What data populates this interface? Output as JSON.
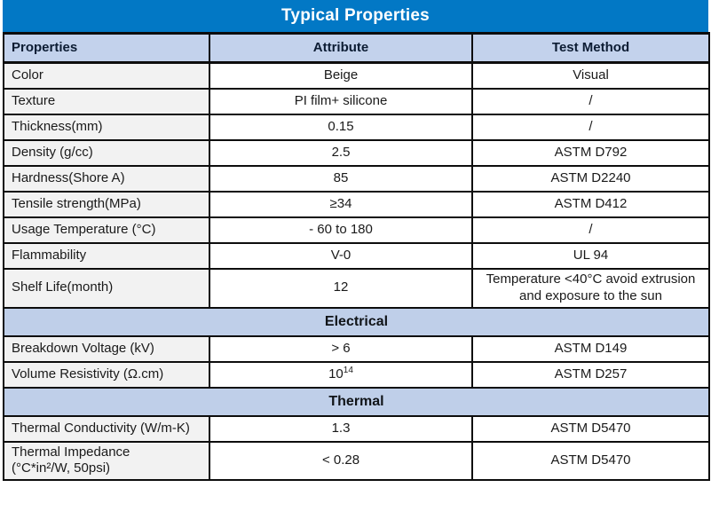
{
  "title": "Typical Properties",
  "colors": {
    "title_bar": "#0278c5",
    "header_bg": "#c3d2ec",
    "section_bg": "#bfcfe9",
    "first_column_bg": "#f2f2f2",
    "border": "#0d0d0d",
    "title_text": "#ffffff"
  },
  "header": {
    "col1": "Properties",
    "col2": "Attribute",
    "col3": "Test Method"
  },
  "physical": {
    "rows": [
      {
        "property": "Color",
        "attribute": "Beige",
        "test_method": "Visual"
      },
      {
        "property": "Texture",
        "attribute": "PI film+ silicone",
        "test_method": "/"
      },
      {
        "property": "Thickness(mm)",
        "attribute": "0.15",
        "test_method": "/"
      },
      {
        "property": "Density (g/cc)",
        "attribute": "2.5",
        "test_method": "ASTM D792"
      },
      {
        "property": "Hardness(Shore A)",
        "attribute": "85",
        "test_method": "ASTM D2240"
      },
      {
        "property": "Tensile strength(MPa)",
        "attribute": "≥34",
        "test_method": "ASTM D412"
      },
      {
        "property": "Usage Temperature (°C)",
        "attribute": "- 60 to 180",
        "test_method": "/"
      },
      {
        "property": "Flammability",
        "attribute": "V-0",
        "test_method": "UL 94"
      },
      {
        "property": "Shelf Life(month)",
        "attribute": "12",
        "test_method": "Temperature <40°C avoid extrusion and exposure to the sun"
      }
    ]
  },
  "electrical": {
    "section_label": "Electrical",
    "rows": [
      {
        "property": "Breakdown Voltage (kV)",
        "attribute": "> 6",
        "test_method": "ASTM D149"
      },
      {
        "property": "Volume Resistivity (Ω.cm)",
        "attribute_base": "10",
        "attribute_sup": "14",
        "test_method": "ASTM D257"
      }
    ]
  },
  "thermal": {
    "section_label": "Thermal",
    "rows": [
      {
        "property": "Thermal Conductivity (W/m-K)",
        "attribute": "1.3",
        "test_method": "ASTM D5470"
      },
      {
        "property_line1": "Thermal Impedance",
        "property_line2": "(°C*in²/W, 50psi)",
        "attribute": "< 0.28",
        "test_method": "ASTM D5470"
      }
    ]
  }
}
